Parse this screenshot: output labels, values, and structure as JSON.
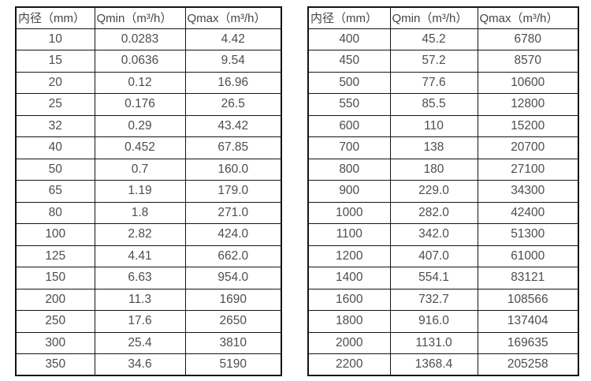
{
  "page": {
    "background_color": "#ffffff",
    "text_color": "#4d4d4d",
    "border_color": "#141414"
  },
  "tables": [
    {
      "name": "small-diameter-flow-table",
      "headers": [
        "内径（mm）",
        "Qmin（m³/h）",
        "Qmax（m³/h）"
      ],
      "rows": [
        [
          "10",
          "0.0283",
          "4.42"
        ],
        [
          "15",
          "0.0636",
          "9.54"
        ],
        [
          "20",
          "0.12",
          "16.96"
        ],
        [
          "25",
          "0.176",
          "26.5"
        ],
        [
          "32",
          "0.29",
          "43.42"
        ],
        [
          "40",
          "0.452",
          "67.85"
        ],
        [
          "50",
          "0.7",
          "160.0"
        ],
        [
          "65",
          "1.19",
          "179.0"
        ],
        [
          "80",
          "1.8",
          "271.0"
        ],
        [
          "100",
          "2.82",
          "424.0"
        ],
        [
          "125",
          "4.41",
          "662.0"
        ],
        [
          "150",
          "6.63",
          "954.0"
        ],
        [
          "200",
          "11.3",
          "1690"
        ],
        [
          "250",
          "17.6",
          "2650"
        ],
        [
          "300",
          "25.4",
          "3810"
        ],
        [
          "350",
          "34.6",
          "5190"
        ]
      ]
    },
    {
      "name": "large-diameter-flow-table",
      "headers": [
        "内径（mm）",
        "Qmin（m³/h）",
        "Qmax（m³/h）"
      ],
      "rows": [
        [
          "400",
          "45.2",
          "6780"
        ],
        [
          "450",
          "57.2",
          "8570"
        ],
        [
          "500",
          "77.6",
          "10600"
        ],
        [
          "550",
          "85.5",
          "12800"
        ],
        [
          "600",
          "110",
          "15200"
        ],
        [
          "700",
          "138",
          "20700"
        ],
        [
          "800",
          "180",
          "27100"
        ],
        [
          "900",
          "229.0",
          "34300"
        ],
        [
          "1000",
          "282.0",
          "42400"
        ],
        [
          "1100",
          "342.0",
          "51300"
        ],
        [
          "1200",
          "407.0",
          "61000"
        ],
        [
          "1400",
          "554.1",
          "83121"
        ],
        [
          "1600",
          "732.7",
          "108566"
        ],
        [
          "1800",
          "916.0",
          "137404"
        ],
        [
          "2000",
          "1131.0",
          "169635"
        ],
        [
          "2200",
          "1368.4",
          "205258"
        ]
      ]
    }
  ]
}
